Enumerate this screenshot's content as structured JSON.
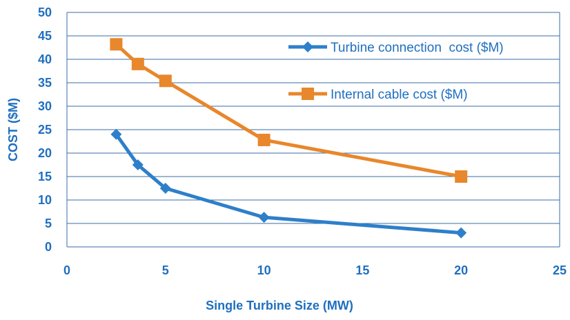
{
  "chart_data": {
    "type": "line",
    "title": "",
    "xlabel": "Single Turbine Size (MW)",
    "ylabel": "COST ($M)",
    "xlim": [
      0,
      25
    ],
    "ylim": [
      0,
      50
    ],
    "xticks": [
      0,
      5,
      10,
      15,
      20,
      25
    ],
    "yticks": [
      0,
      5,
      10,
      15,
      20,
      25,
      30,
      35,
      40,
      45,
      50
    ],
    "grid": "horizontal",
    "legend_position": "top-right",
    "series": [
      {
        "name": "Turbine connection  cost ($M)",
        "color": "#2E7FC9",
        "marker": "diamond",
        "x": [
          2.5,
          3.6,
          5,
          10,
          20
        ],
        "y": [
          24,
          17.5,
          12.5,
          6.3,
          3
        ]
      },
      {
        "name": "Internal cable cost ($M)",
        "color": "#E8872B",
        "marker": "square",
        "x": [
          2.5,
          3.6,
          5,
          10,
          20
        ],
        "y": [
          43.2,
          39,
          35.4,
          22.8,
          15
        ]
      }
    ],
    "colors": {
      "axis_text": "#1F6FBF",
      "grid": "#3B6BA5"
    }
  }
}
